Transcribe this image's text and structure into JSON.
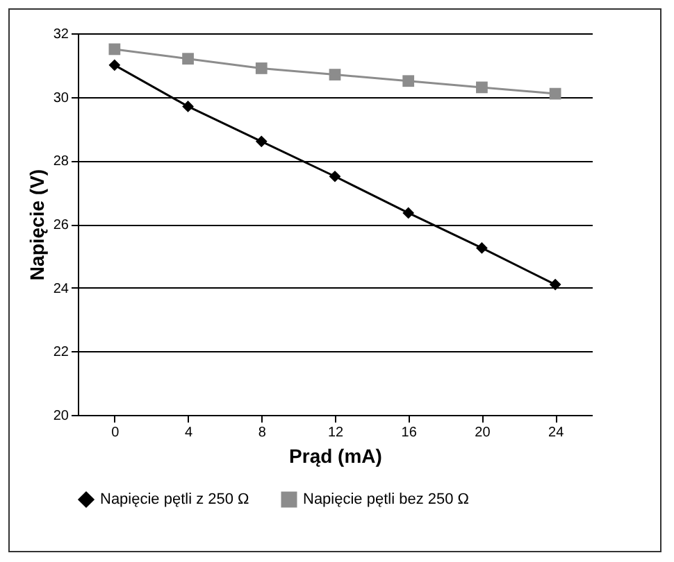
{
  "chart_data": {
    "type": "line",
    "xlabel": "Prąd (mA)",
    "ylabel": "Napięcie (V)",
    "categories": [
      "0",
      "4",
      "8",
      "12",
      "16",
      "20",
      "24"
    ],
    "series": [
      {
        "name": "Napięcie pętli z 250 Ω",
        "color": "#000000",
        "marker": "diamond",
        "values": [
          31.0,
          29.7,
          28.6,
          27.5,
          26.35,
          25.25,
          24.1
        ]
      },
      {
        "name": "Napięcie pętli bez 250 Ω",
        "color": "#8c8c8c",
        "marker": "square",
        "values": [
          31.5,
          31.2,
          30.9,
          30.7,
          30.5,
          30.3,
          30.1
        ]
      }
    ],
    "ylim": [
      20,
      32
    ],
    "yticks": [
      20,
      22,
      24,
      26,
      28,
      30,
      32
    ],
    "grid": "y",
    "legend": "bottom",
    "line_style": "solid"
  }
}
